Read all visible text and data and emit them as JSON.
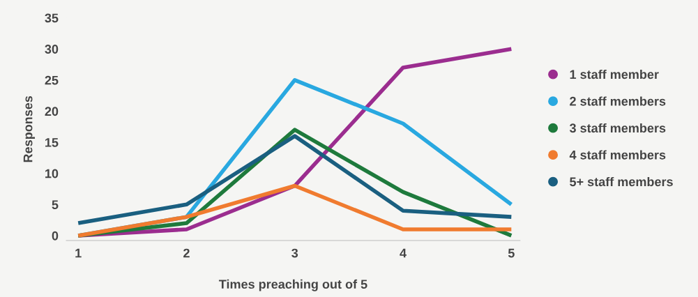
{
  "chart_data": {
    "type": "line",
    "xlabel": "Times preaching out of 5",
    "ylabel": "Responses",
    "x": [
      1,
      2,
      3,
      4,
      5
    ],
    "xlim": [
      0.89,
      5.08
    ],
    "xticks": [
      1,
      2,
      3,
      4,
      5
    ],
    "ylim": [
      -0.8,
      35
    ],
    "yticks": [
      0,
      5,
      10,
      15,
      20,
      25,
      30,
      35
    ],
    "grid": false,
    "legend": "right",
    "marker": "none",
    "line_style": "solid",
    "series": [
      {
        "name": "1 staff member",
        "color": "#9b2d8f",
        "values": [
          0,
          1,
          8,
          27,
          30
        ]
      },
      {
        "name": "2 staff members",
        "color": "#29a8e0",
        "values": [
          0,
          3,
          25,
          18,
          5
        ]
      },
      {
        "name": "3 staff members",
        "color": "#1e7a3c",
        "values": [
          0,
          2,
          17,
          7,
          0
        ]
      },
      {
        "name": "4 staff members",
        "color": "#f07b2f",
        "values": [
          0,
          3,
          8,
          1,
          1
        ]
      },
      {
        "name": "5+ staff members",
        "color": "#1a5f80",
        "values": [
          2,
          5,
          16,
          4,
          3
        ]
      }
    ]
  }
}
